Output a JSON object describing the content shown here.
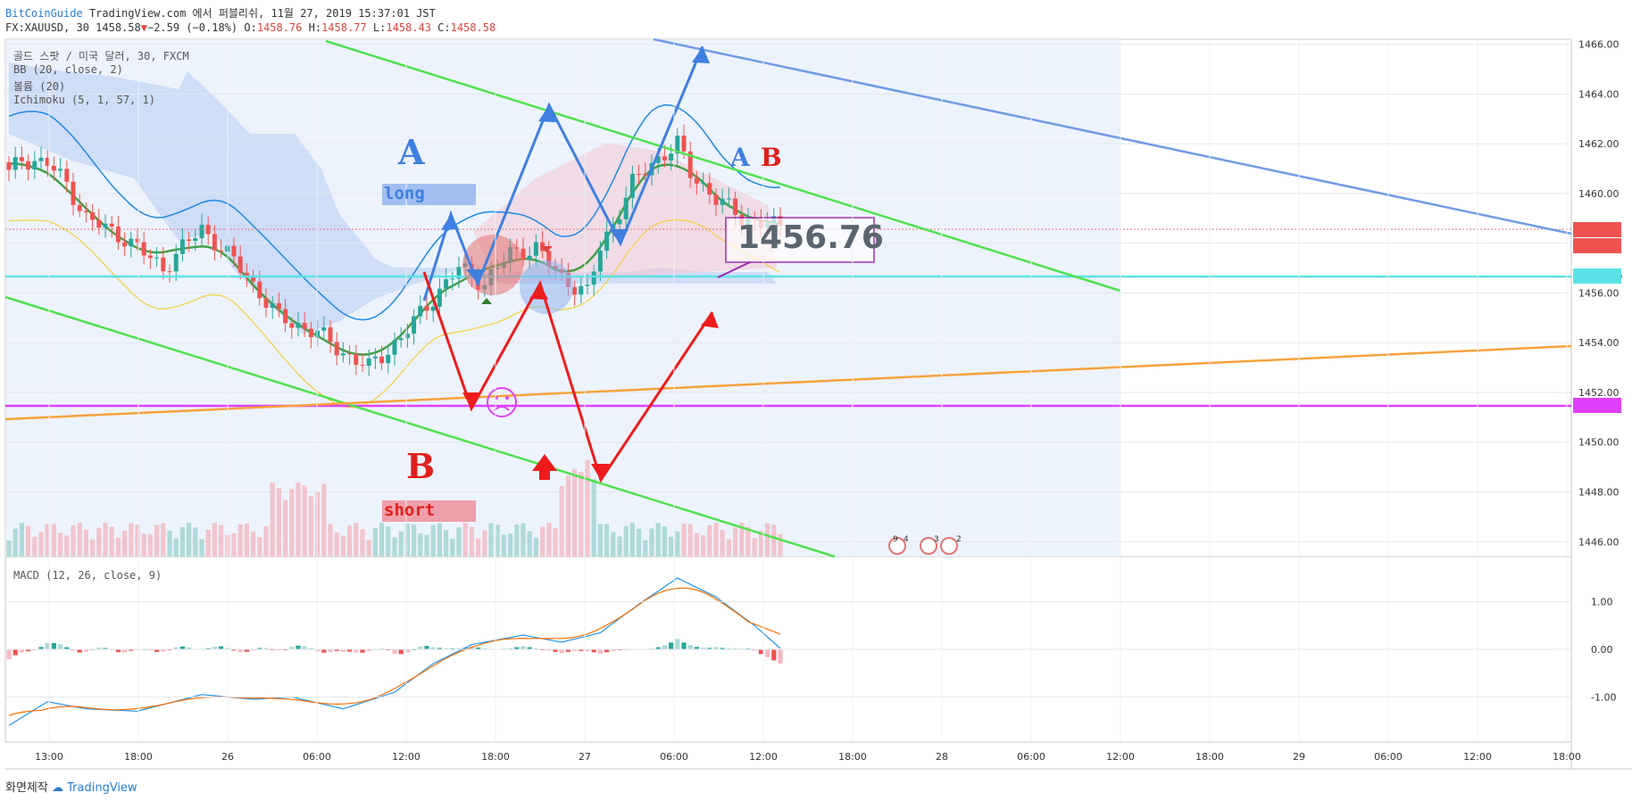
{
  "header": {
    "author": "BitCoinGuide",
    "published": "TradingView.com 에서 퍼블리쉬, 11월 27, 2019 15:37:01 JST",
    "symbol": "FX:XAUUSD, 30",
    "last": "1458.58",
    "change_icon": "down-triangle-icon",
    "change": "−2.59 (−0.18%)",
    "o_label": "O:",
    "o": "1458.76",
    "h_label": "H:",
    "h": "1458.77",
    "l_label": "L:",
    "l": "1458.43",
    "c_label": "C:",
    "c": "1458.58"
  },
  "indicators": {
    "title": "골드 스팟 / 미국 달러, 30, FXCM",
    "bb": "BB (20, close, 2)",
    "volume": "볼륨 (20)",
    "ichimoku": "Ichimoku (5, 1, 57, 1)",
    "macd": "MACD (12, 26, close, 9)"
  },
  "annotations": {
    "a_left": "A",
    "long": "long",
    "b_left": "B",
    "short": "short",
    "a_right": "A",
    "b_right": "B",
    "price_callout": "1456.76",
    "event_badges": [
      "9",
      "4",
      "3",
      "2"
    ]
  },
  "colors": {
    "up": "#26a69a",
    "down": "#ef5350",
    "bb": "#1e88e5",
    "basis": "#43a047",
    "channel": "#4fe14f",
    "cyan_level": "#5ce1e6",
    "magenta_level": "#e040fb",
    "orange_line": "#f7a23b",
    "blue_trend": "#6f9be6",
    "arrow_blue": "#3f7fe0",
    "arrow_red": "#ee1c1c",
    "macd": "#2196f3",
    "signal": "#ff6d00"
  },
  "chart_data": {
    "type": "candlestick",
    "price_scale": {
      "ticks": [
        "1466.00",
        "1464.00",
        "1462.00",
        "1460.00",
        "1458.00",
        "1456.00",
        "1454.00",
        "1452.00",
        "1450.00",
        "1448.00",
        "1446.00"
      ],
      "ylim": [
        1445.4,
        1466.2
      ]
    },
    "price_labels": {
      "last": "1458.58",
      "countdown": "23:00",
      "cyan_level": "1456.70",
      "magenta_level": "1451.51"
    },
    "macd_scale": {
      "ticks": [
        "1.00",
        "0.00",
        "-1.00"
      ],
      "ylim": [
        -1.95,
        1.95
      ]
    },
    "time_axis": [
      "13:00",
      "18:00",
      "26",
      "06:00",
      "12:00",
      "18:00",
      "27",
      "06:00",
      "12:00",
      "18:00",
      "28",
      "06:00",
      "12:00",
      "18:00",
      "29",
      "06:00",
      "12:00",
      "18:00"
    ],
    "horizontal_levels": [
      1458.58,
      1456.7,
      1451.51
    ],
    "ohlc_anchors": [
      [
        0,
        1460.8
      ],
      [
        2,
        1461.4
      ],
      [
        6,
        1461.2
      ],
      [
        9,
        1460.4
      ],
      [
        12,
        1459.0
      ],
      [
        18,
        1458.2
      ],
      [
        24,
        1457.0
      ],
      [
        30,
        1458.6
      ],
      [
        36,
        1457.0
      ],
      [
        42,
        1455.0
      ],
      [
        48,
        1454.4
      ],
      [
        52,
        1453.6
      ],
      [
        56,
        1453.0
      ],
      [
        61,
        1454.2
      ],
      [
        66,
        1455.8
      ],
      [
        70,
        1457.0
      ],
      [
        74,
        1456.4
      ],
      [
        78,
        1457.6
      ],
      [
        82,
        1457.8
      ],
      [
        86,
        1456.6
      ],
      [
        90,
        1456.0
      ],
      [
        92,
        1457.8
      ],
      [
        94,
        1458.8
      ],
      [
        97,
        1460.4
      ],
      [
        100,
        1461.2
      ],
      [
        104,
        1462.0
      ],
      [
        106,
        1460.8
      ],
      [
        110,
        1459.8
      ],
      [
        114,
        1459.0
      ],
      [
        118,
        1458.8
      ],
      [
        120,
        1458.58
      ]
    ],
    "macd_anchors": [
      [
        0,
        -1.6
      ],
      [
        6,
        -1.1
      ],
      [
        12,
        -1.25
      ],
      [
        20,
        -1.3
      ],
      [
        30,
        -0.95
      ],
      [
        38,
        -1.05
      ],
      [
        44,
        -1.0
      ],
      [
        52,
        -1.25
      ],
      [
        60,
        -0.9
      ],
      [
        66,
        -0.3
      ],
      [
        72,
        0.1
      ],
      [
        80,
        0.3
      ],
      [
        86,
        0.15
      ],
      [
        92,
        0.35
      ],
      [
        98,
        0.95
      ],
      [
        104,
        1.5
      ],
      [
        110,
        1.1
      ],
      [
        116,
        0.5
      ],
      [
        120,
        0.02
      ]
    ]
  }
}
